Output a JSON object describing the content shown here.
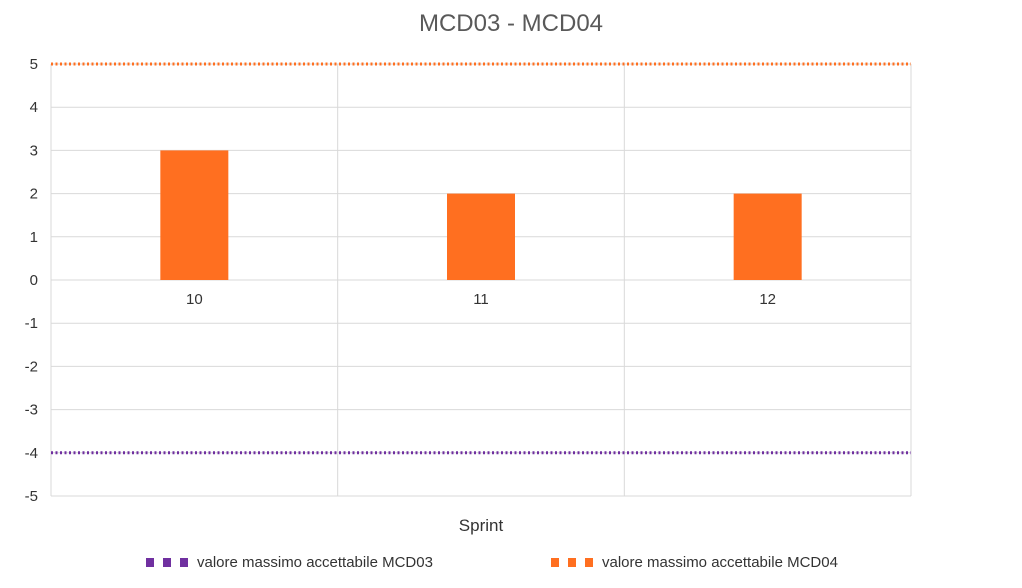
{
  "chart_data": {
    "type": "bar",
    "title": "MCD03 - MCD04",
    "xlabel": "Sprint",
    "ylabel": "",
    "categories": [
      "10",
      "11",
      "12"
    ],
    "series": [
      {
        "values": [
          3,
          2,
          2
        ],
        "color": "#FF6F20"
      }
    ],
    "reference_lines": [
      {
        "name": "valore massimo accettabile MCD03",
        "value": -4,
        "color": "#7030A0",
        "style": "dotted"
      },
      {
        "name": "valore massimo accettabile MCD04",
        "value": 5,
        "color": "#FF6F20",
        "style": "dotted"
      }
    ],
    "ylim": [
      -5,
      5
    ],
    "yticks": [
      "-5",
      "-4",
      "-3",
      "-2",
      "-1",
      "0",
      "1",
      "2",
      "3",
      "4",
      "5"
    ],
    "grid": true,
    "legend_position": "bottom"
  }
}
